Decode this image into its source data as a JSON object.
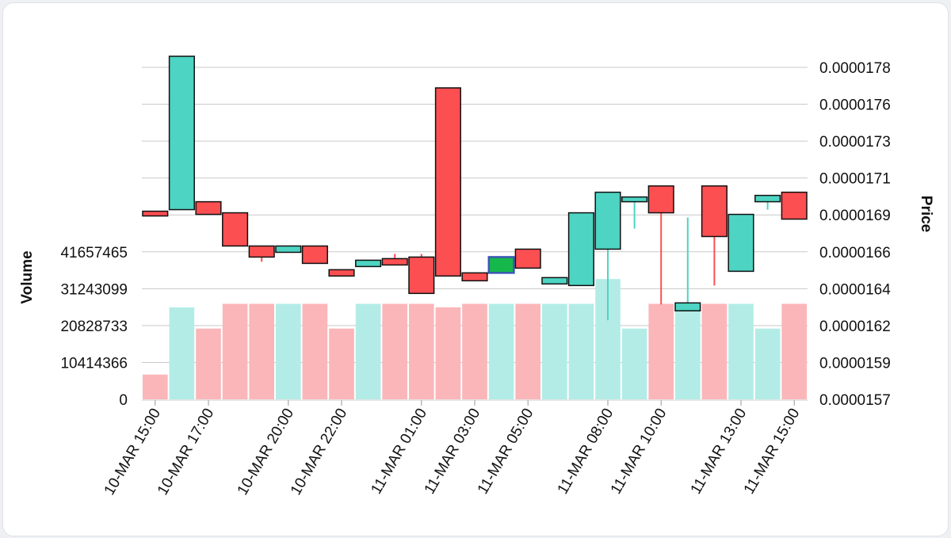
{
  "chart_data": {
    "type": "candlestick",
    "price_axis": {
      "label": "Price",
      "ticks": [
        "0.0000157",
        "0.0000159",
        "0.0000162",
        "0.0000164",
        "0.0000166",
        "0.0000169",
        "0.0000171",
        "0.0000173",
        "0.0000176",
        "0.0000178"
      ],
      "range": [
        1.57e-05,
        1.78e-05
      ]
    },
    "volume_axis": {
      "label": "Volume",
      "ticks": [
        "0",
        "10414366",
        "20828733",
        "31243099",
        "41657465"
      ],
      "range": [
        0,
        41657465
      ]
    },
    "x_ticks": [
      {
        "index": 0,
        "label": "10-MAR 15:00"
      },
      {
        "index": 2,
        "label": "10-MAR 17:00"
      },
      {
        "index": 5,
        "label": "10-MAR 20:00"
      },
      {
        "index": 7,
        "label": "10-MAR 22:00"
      },
      {
        "index": 10,
        "label": "11-MAR 01:00"
      },
      {
        "index": 12,
        "label": "11-MAR 03:00"
      },
      {
        "index": 14,
        "label": "11-MAR 05:00"
      },
      {
        "index": 17,
        "label": "11-MAR 08:00"
      },
      {
        "index": 19,
        "label": "11-MAR 10:00"
      },
      {
        "index": 22,
        "label": "11-MAR 13:00"
      },
      {
        "index": 24,
        "label": "11-MAR 15:00"
      }
    ],
    "candles": [
      {
        "o": 1.689e-05,
        "h": 1.689e-05,
        "l": 1.686e-05,
        "c": 1.686e-05,
        "v": 7000000
      },
      {
        "o": 1.69e-05,
        "h": 1.787e-05,
        "l": 1.69e-05,
        "c": 1.787e-05,
        "v": 26000000
      },
      {
        "o": 1.695e-05,
        "h": 1.695e-05,
        "l": 1.687e-05,
        "c": 1.687e-05,
        "v": 20000000
      },
      {
        "o": 1.688e-05,
        "h": 1.688e-05,
        "l": 1.667e-05,
        "c": 1.667e-05,
        "v": 27000000
      },
      {
        "o": 1.667e-05,
        "h": 1.667e-05,
        "l": 1.657e-05,
        "c": 1.66e-05,
        "v": 27000000
      },
      {
        "o": 1.663e-05,
        "h": 1.667e-05,
        "l": 1.663e-05,
        "c": 1.667e-05,
        "v": 27000000
      },
      {
        "o": 1.667e-05,
        "h": 1.667e-05,
        "l": 1.656e-05,
        "c": 1.656e-05,
        "v": 27000000
      },
      {
        "o": 1.652e-05,
        "h": 1.652e-05,
        "l": 1.648e-05,
        "c": 1.648e-05,
        "v": 20000000
      },
      {
        "o": 1.654e-05,
        "h": 1.658e-05,
        "l": 1.654e-05,
        "c": 1.658e-05,
        "v": 27000000
      },
      {
        "o": 1.659e-05,
        "h": 1.662e-05,
        "l": 1.655e-05,
        "c": 1.655e-05,
        "v": 27000000
      },
      {
        "o": 1.66e-05,
        "h": 1.662e-05,
        "l": 1.637e-05,
        "c": 1.637e-05,
        "v": 27000000
      },
      {
        "o": 1.767e-05,
        "h": 1.767e-05,
        "l": 1.648e-05,
        "c": 1.648e-05,
        "v": 26000000
      },
      {
        "o": 1.65e-05,
        "h": 1.65e-05,
        "l": 1.645e-05,
        "c": 1.645e-05,
        "v": 27000000
      },
      {
        "o": 1.65e-05,
        "h": 1.66e-05,
        "l": 1.65e-05,
        "c": 1.66e-05,
        "v": 27000000,
        "highlight": true
      },
      {
        "o": 1.665e-05,
        "h": 1.665e-05,
        "l": 1.653e-05,
        "c": 1.653e-05,
        "v": 27000000
      },
      {
        "o": 1.643e-05,
        "h": 1.647e-05,
        "l": 1.643e-05,
        "c": 1.647e-05,
        "v": 27000000
      },
      {
        "o": 1.642e-05,
        "h": 1.688e-05,
        "l": 1.642e-05,
        "c": 1.688e-05,
        "v": 27000000
      },
      {
        "o": 1.665e-05,
        "h": 1.701e-05,
        "l": 1.62e-05,
        "c": 1.701e-05,
        "v": 34000000
      },
      {
        "o": 1.695e-05,
        "h": 1.698e-05,
        "l": 1.678e-05,
        "c": 1.698e-05,
        "v": 20000000
      },
      {
        "o": 1.705e-05,
        "h": 1.705e-05,
        "l": 1.63e-05,
        "c": 1.688e-05,
        "v": 27000000
      },
      {
        "o": 1.626e-05,
        "h": 1.685e-05,
        "l": 1.626e-05,
        "c": 1.631e-05,
        "v": 27000000
      },
      {
        "o": 1.705e-05,
        "h": 1.705e-05,
        "l": 1.642e-05,
        "c": 1.673e-05,
        "v": 27000000
      },
      {
        "o": 1.651e-05,
        "h": 1.687e-05,
        "l": 1.651e-05,
        "c": 1.687e-05,
        "v": 27000000
      },
      {
        "o": 1.695e-05,
        "h": 1.699e-05,
        "l": 1.69e-05,
        "c": 1.699e-05,
        "v": 20000000
      },
      {
        "o": 1.701e-05,
        "h": 1.701e-05,
        "l": 1.684e-05,
        "c": 1.684e-05,
        "v": 27000000
      }
    ],
    "colors": {
      "up": "#4dd4c2",
      "down": "#fb4f52",
      "up_volume": "#b3ece6",
      "down_volume": "#fbb6b9",
      "highlight_fill": "#16b84b",
      "highlight_border": "#3a57b6",
      "grid": "#c9c9c9"
    }
  }
}
